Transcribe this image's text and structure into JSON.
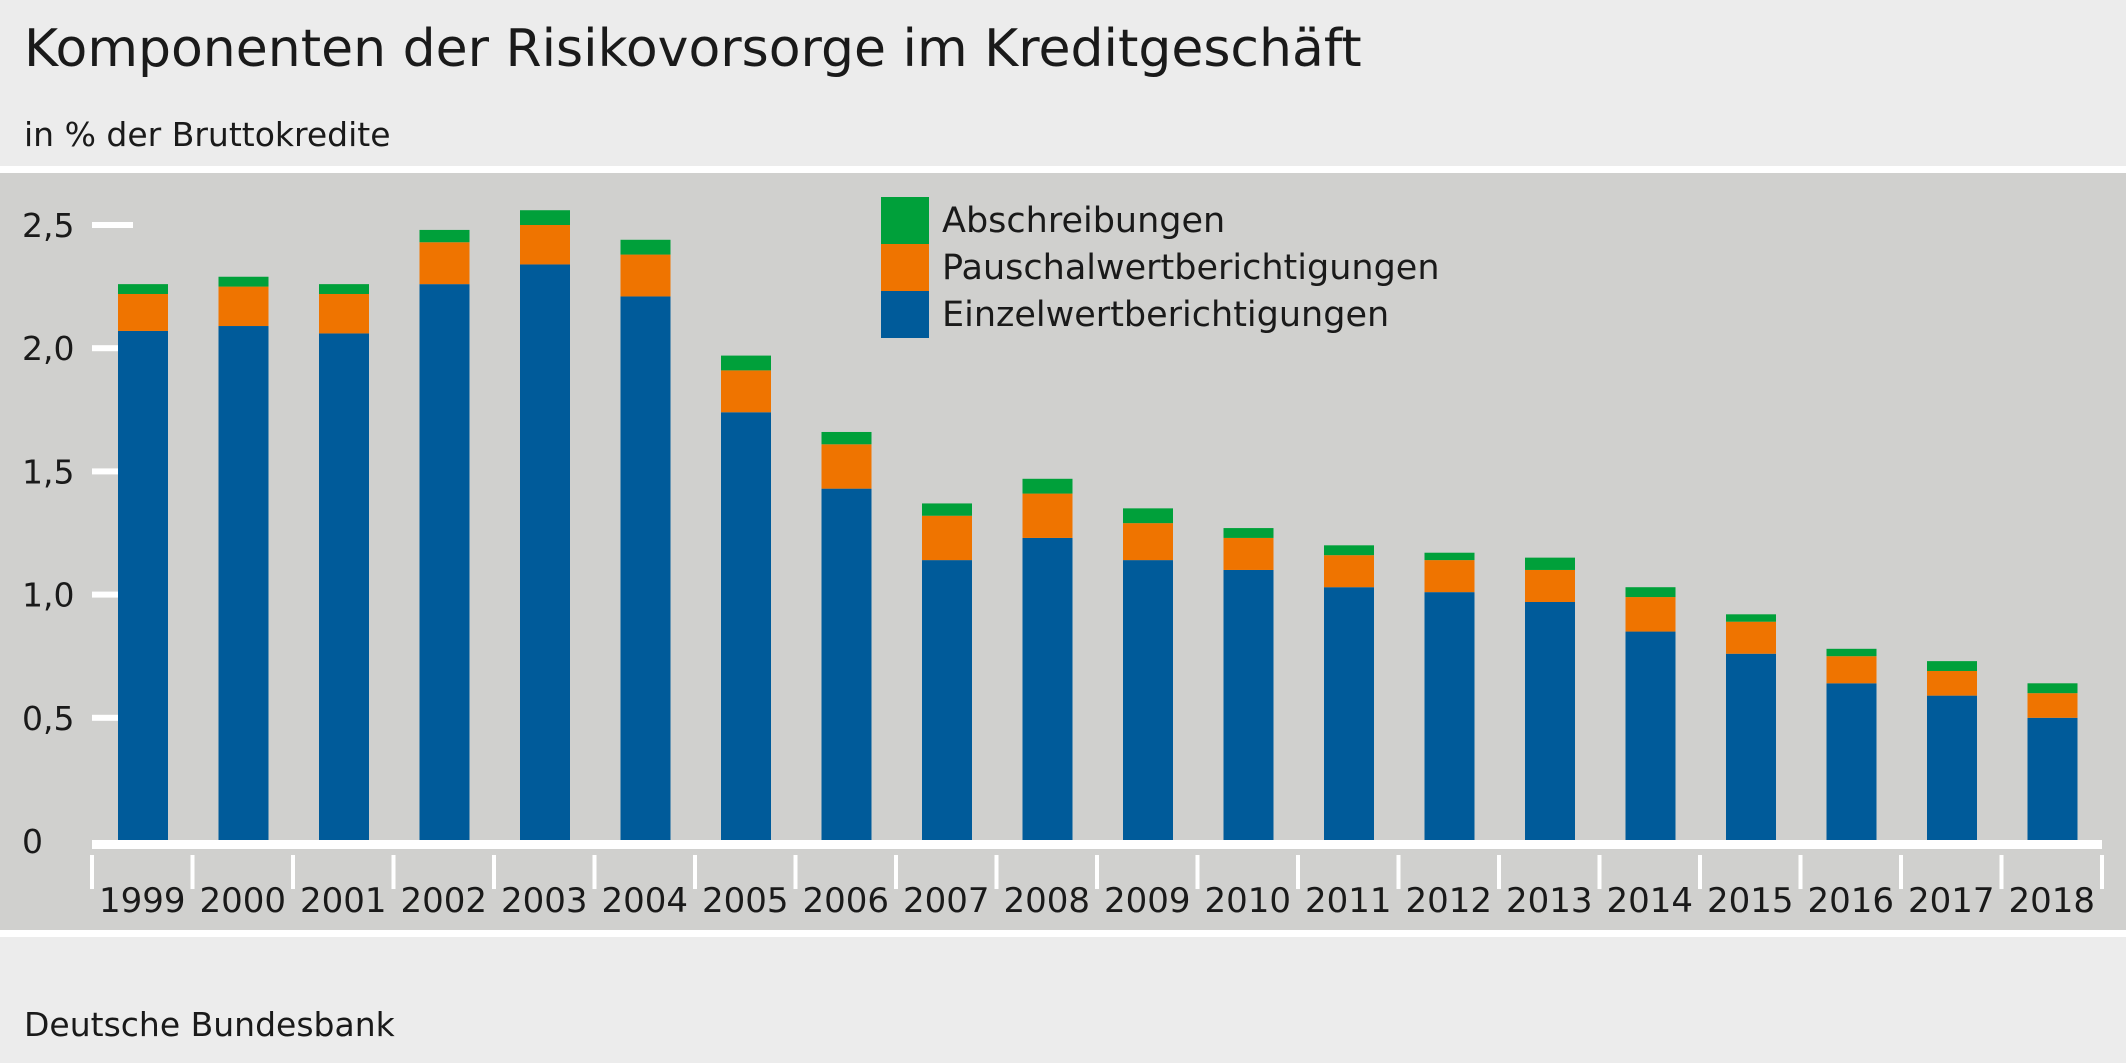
{
  "title": "Komponenten der Risikovorsorge im Kreditgeschäft",
  "subtitle": "in % der Bruttokredite",
  "source": "Deutsche Bundesbank",
  "colors": {
    "background": "#ececec",
    "plot_background": "#d0d0ce",
    "Einzelwertberichtigungen": "#005b9a",
    "Pauschalwertberichtigungen": "#ef7400",
    "Abschreibungen": "#00a03a"
  },
  "chart_data": {
    "type": "bar",
    "stacked": true,
    "title": "Komponenten der Risikovorsorge im Kreditgeschäft",
    "subtitle": "in % der Bruttokredite",
    "xlabel": "",
    "ylabel": "",
    "ylim": [
      0,
      2.5
    ],
    "yticks": [
      "0",
      "0,5",
      "1,0",
      "1,5",
      "2,0",
      "2,5"
    ],
    "ytick_values": [
      0,
      0.5,
      1.0,
      1.5,
      2.0,
      2.5
    ],
    "grid": false,
    "legend_position": "top-center",
    "legend": [
      "Abschreibungen",
      "Pauschalwertberichtigungen",
      "Einzelwertberichtigungen"
    ],
    "categories": [
      "1999",
      "2000",
      "2001",
      "2002",
      "2003",
      "2004",
      "2005",
      "2006",
      "2007",
      "2008",
      "2009",
      "2010",
      "2011",
      "2012",
      "2013",
      "2014",
      "2015",
      "2016",
      "2017",
      "2018"
    ],
    "series": [
      {
        "name": "Einzelwertberichtigungen",
        "color": "#005b9a",
        "values": [
          2.07,
          2.09,
          2.06,
          2.26,
          2.34,
          2.21,
          1.74,
          1.43,
          1.14,
          1.23,
          1.14,
          1.1,
          1.03,
          1.01,
          0.97,
          0.85,
          0.76,
          0.64,
          0.59,
          0.5
        ]
      },
      {
        "name": "Pauschalwertberichtigungen",
        "color": "#ef7400",
        "values": [
          0.15,
          0.16,
          0.16,
          0.17,
          0.16,
          0.17,
          0.17,
          0.18,
          0.18,
          0.18,
          0.15,
          0.13,
          0.13,
          0.13,
          0.13,
          0.14,
          0.13,
          0.11,
          0.1,
          0.1
        ]
      },
      {
        "name": "Abschreibungen",
        "color": "#00a03a",
        "values": [
          0.04,
          0.04,
          0.04,
          0.05,
          0.06,
          0.06,
          0.06,
          0.05,
          0.05,
          0.06,
          0.06,
          0.04,
          0.04,
          0.03,
          0.05,
          0.04,
          0.03,
          0.03,
          0.04,
          0.04
        ]
      }
    ]
  }
}
